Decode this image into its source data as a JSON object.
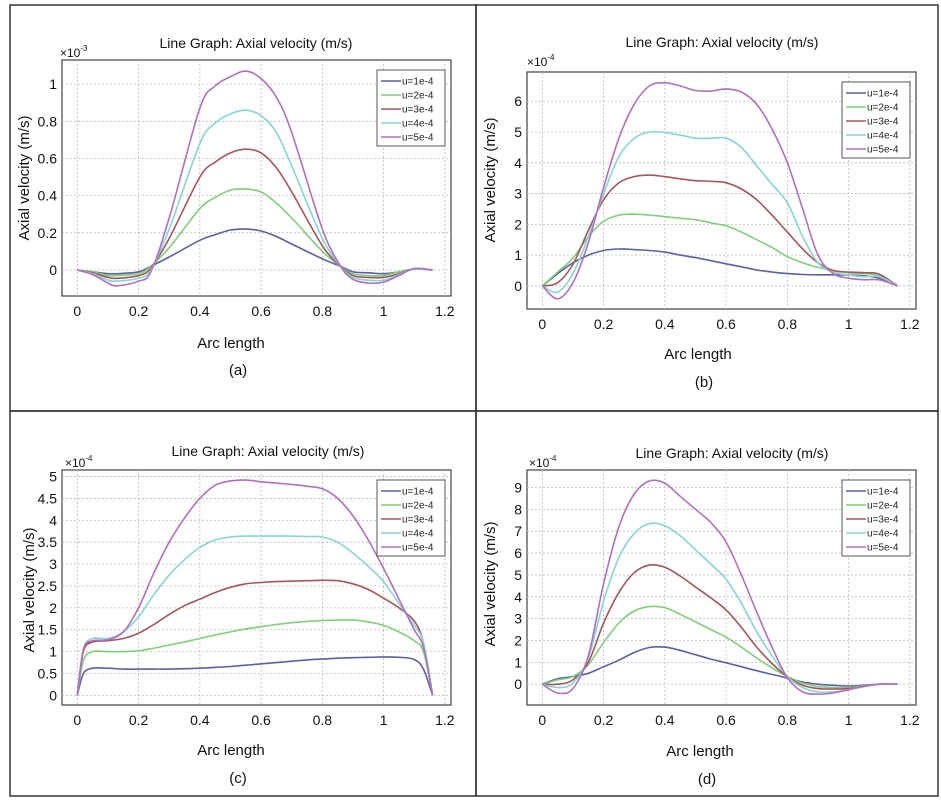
{
  "colors": {
    "u1": "#5a5fa8",
    "u2": "#7fcf7a",
    "u3": "#a5555a",
    "u4": "#86d4d6",
    "u5": "#b06fbf"
  },
  "chart_data": [
    {
      "type": "line",
      "panel": "(a)",
      "title": "Line Graph: Axial velocity (m/s)",
      "xlabel": "Arc length",
      "ylabel": "Axial velocity (m/s)",
      "y_multiplier": "×10^-3",
      "y_multiplier_base": "×10",
      "y_multiplier_exp": "-3",
      "xlim": [
        -0.05,
        1.22
      ],
      "ylim": [
        -0.14,
        1.13
      ],
      "xticks": [
        0,
        0.2,
        0.4,
        0.6,
        0.8,
        1,
        1.2
      ],
      "xtick_labels": [
        "0",
        "0.2",
        "0.4",
        "0.6",
        "0.8",
        "1",
        "1.2"
      ],
      "yticks": [
        0,
        0.2,
        0.4,
        0.6,
        0.8,
        1
      ],
      "ytick_labels": [
        "0",
        "0.2",
        "0.4",
        "0.6",
        "0.8",
        "1"
      ],
      "grid": true,
      "legend_position": "top-right",
      "x": [
        0,
        0.05,
        0.1,
        0.13,
        0.2,
        0.24,
        0.3,
        0.4,
        0.45,
        0.5,
        0.55,
        0.6,
        0.65,
        0.7,
        0.8,
        0.86,
        0.9,
        0.95,
        1.0,
        1.05,
        1.1,
        1.16
      ],
      "series": [
        {
          "name": "u=1e-4",
          "color_key": "u1",
          "values": [
            0,
            -0.01,
            -0.02,
            -0.02,
            -0.01,
            0.02,
            0.07,
            0.16,
            0.19,
            0.215,
            0.22,
            0.21,
            0.18,
            0.14,
            0.06,
            0.02,
            -0.01,
            -0.015,
            -0.02,
            -0.01,
            0.005,
            0
          ]
        },
        {
          "name": "u=2e-4",
          "color_key": "u2",
          "values": [
            0,
            -0.01,
            -0.03,
            -0.03,
            -0.02,
            0.02,
            0.12,
            0.33,
            0.39,
            0.43,
            0.435,
            0.42,
            0.36,
            0.28,
            0.1,
            0.02,
            -0.02,
            -0.03,
            -0.03,
            -0.01,
            0.005,
            0
          ]
        },
        {
          "name": "u=3e-4",
          "color_key": "u3",
          "values": [
            0,
            -0.015,
            -0.04,
            -0.045,
            -0.03,
            0.01,
            0.17,
            0.5,
            0.58,
            0.63,
            0.65,
            0.63,
            0.55,
            0.42,
            0.13,
            0.02,
            -0.03,
            -0.04,
            -0.04,
            -0.02,
            0.005,
            0
          ]
        },
        {
          "name": "u=4e-4",
          "color_key": "u4",
          "values": [
            0,
            -0.02,
            -0.055,
            -0.06,
            -0.045,
            0.0,
            0.22,
            0.68,
            0.79,
            0.84,
            0.86,
            0.83,
            0.74,
            0.56,
            0.17,
            0.02,
            -0.04,
            -0.055,
            -0.055,
            -0.025,
            0.005,
            0
          ]
        },
        {
          "name": "u=5e-4",
          "color_key": "u5",
          "values": [
            0,
            -0.025,
            -0.07,
            -0.085,
            -0.06,
            -0.01,
            0.28,
            0.87,
            0.99,
            1.04,
            1.07,
            1.03,
            0.93,
            0.74,
            0.22,
            0.02,
            -0.05,
            -0.07,
            -0.065,
            -0.03,
            0.008,
            0
          ]
        }
      ]
    },
    {
      "type": "line",
      "panel": "(b)",
      "title": "Line Graph: Axial velocity (m/s)",
      "xlabel": "Arc length",
      "ylabel": "Axial velocity (m/s)",
      "y_multiplier": "×10^-4",
      "y_multiplier_base": "×10",
      "y_multiplier_exp": "-4",
      "xlim": [
        -0.05,
        1.22
      ],
      "ylim": [
        -0.75,
        6.95
      ],
      "xticks": [
        0,
        0.2,
        0.4,
        0.6,
        0.8,
        1,
        1.2
      ],
      "xtick_labels": [
        "0",
        "0.2",
        "0.4",
        "0.6",
        "0.8",
        "1",
        "1.2"
      ],
      "yticks": [
        0,
        1,
        2,
        3,
        4,
        5,
        6
      ],
      "ytick_labels": [
        "0",
        "1",
        "2",
        "3",
        "4",
        "5",
        "6"
      ],
      "grid": true,
      "legend_position": "top-right",
      "x": [
        0,
        0.05,
        0.1,
        0.15,
        0.2,
        0.25,
        0.3,
        0.35,
        0.4,
        0.45,
        0.5,
        0.55,
        0.6,
        0.65,
        0.7,
        0.75,
        0.8,
        0.85,
        0.9,
        0.95,
        1.0,
        1.05,
        1.1,
        1.16
      ],
      "series": [
        {
          "name": "u=1e-4",
          "color_key": "u1",
          "values": [
            0,
            0.4,
            0.75,
            1.0,
            1.15,
            1.2,
            1.18,
            1.15,
            1.1,
            1.0,
            0.92,
            0.82,
            0.72,
            0.62,
            0.52,
            0.45,
            0.4,
            0.37,
            0.36,
            0.36,
            0.35,
            0.33,
            0.25,
            0
          ]
        },
        {
          "name": "u=2e-4",
          "color_key": "u2",
          "values": [
            0,
            0.45,
            0.9,
            1.6,
            2.1,
            2.3,
            2.33,
            2.3,
            2.25,
            2.2,
            2.15,
            2.05,
            1.95,
            1.75,
            1.5,
            1.25,
            0.95,
            0.75,
            0.6,
            0.5,
            0.43,
            0.4,
            0.33,
            0
          ]
        },
        {
          "name": "u=3e-4",
          "color_key": "u3",
          "values": [
            0,
            0.1,
            0.7,
            1.8,
            2.8,
            3.35,
            3.55,
            3.6,
            3.55,
            3.48,
            3.42,
            3.4,
            3.35,
            3.15,
            2.8,
            2.3,
            1.75,
            1.2,
            0.75,
            0.5,
            0.45,
            0.43,
            0.38,
            0
          ]
        },
        {
          "name": "u=4e-4",
          "color_key": "u4",
          "values": [
            0,
            -0.2,
            0.4,
            1.6,
            3.0,
            4.2,
            4.8,
            5.0,
            4.98,
            4.9,
            4.8,
            4.8,
            4.8,
            4.5,
            3.9,
            3.3,
            2.7,
            1.6,
            0.75,
            0.45,
            0.35,
            0.3,
            0.3,
            0
          ]
        },
        {
          "name": "u=5e-4",
          "color_key": "u5",
          "values": [
            0,
            -0.42,
            0.1,
            1.4,
            3.2,
            4.8,
            5.9,
            6.5,
            6.6,
            6.5,
            6.35,
            6.33,
            6.4,
            6.3,
            5.9,
            5.1,
            4.0,
            2.5,
            1.0,
            0.4,
            0.25,
            0.2,
            0.2,
            0
          ]
        }
      ]
    },
    {
      "type": "line",
      "panel": "(c)",
      "title": "Line Graph: Axial velocity (m/s)",
      "xlabel": "Arc length",
      "ylabel": "Axial velocity (m/s)",
      "y_multiplier": "×10^-4",
      "y_multiplier_base": "×10",
      "y_multiplier_exp": "-4",
      "xlim": [
        -0.05,
        1.22
      ],
      "ylim": [
        -0.22,
        5.15
      ],
      "xticks": [
        0,
        0.2,
        0.4,
        0.6,
        0.8,
        1,
        1.2
      ],
      "xtick_labels": [
        "0",
        "0.2",
        "0.4",
        "0.6",
        "0.8",
        "1",
        "1.2"
      ],
      "yticks": [
        0,
        0.5,
        1,
        1.5,
        2,
        2.5,
        3,
        3.5,
        4,
        4.5,
        5
      ],
      "ytick_labels": [
        "0",
        "0.5",
        "1",
        "1.5",
        "2",
        "2.5",
        "3",
        "3.5",
        "4",
        "4.5",
        "5"
      ],
      "grid": true,
      "legend_position": "top-right",
      "x": [
        0,
        0.02,
        0.05,
        0.1,
        0.15,
        0.2,
        0.25,
        0.3,
        0.35,
        0.4,
        0.45,
        0.5,
        0.55,
        0.6,
        0.65,
        0.7,
        0.75,
        0.8,
        0.85,
        0.9,
        0.95,
        1.0,
        1.05,
        1.1,
        1.13,
        1.16
      ],
      "series": [
        {
          "name": "u=1e-4",
          "color_key": "u1",
          "values": [
            0,
            0.5,
            0.62,
            0.62,
            0.6,
            0.6,
            0.6,
            0.6,
            0.61,
            0.62,
            0.64,
            0.66,
            0.69,
            0.72,
            0.75,
            0.78,
            0.81,
            0.83,
            0.85,
            0.86,
            0.87,
            0.88,
            0.87,
            0.82,
            0.6,
            0
          ]
        },
        {
          "name": "u=2e-4",
          "color_key": "u2",
          "values": [
            0,
            0.8,
            1.0,
            1.0,
            1.0,
            1.02,
            1.08,
            1.15,
            1.22,
            1.3,
            1.38,
            1.45,
            1.52,
            1.57,
            1.62,
            1.66,
            1.69,
            1.71,
            1.72,
            1.72,
            1.68,
            1.6,
            1.45,
            1.25,
            1.0,
            0
          ]
        },
        {
          "name": "u=3e-4",
          "color_key": "u3",
          "values": [
            0,
            1.0,
            1.22,
            1.25,
            1.3,
            1.42,
            1.62,
            1.85,
            2.05,
            2.2,
            2.35,
            2.47,
            2.55,
            2.58,
            2.6,
            2.61,
            2.62,
            2.63,
            2.62,
            2.55,
            2.42,
            2.22,
            2.0,
            1.7,
            1.2,
            0
          ]
        },
        {
          "name": "u=4e-4",
          "color_key": "u4",
          "values": [
            0,
            1.05,
            1.3,
            1.3,
            1.45,
            1.8,
            2.3,
            2.75,
            3.1,
            3.38,
            3.55,
            3.62,
            3.64,
            3.64,
            3.64,
            3.64,
            3.63,
            3.62,
            3.5,
            3.25,
            2.95,
            2.6,
            2.1,
            1.6,
            1.2,
            0
          ]
        },
        {
          "name": "u=5e-4",
          "color_key": "u5",
          "values": [
            0,
            1.05,
            1.25,
            1.27,
            1.45,
            2.0,
            2.8,
            3.5,
            4.05,
            4.5,
            4.8,
            4.9,
            4.92,
            4.88,
            4.85,
            4.82,
            4.78,
            4.72,
            4.5,
            4.1,
            3.55,
            2.9,
            2.2,
            1.5,
            1.1,
            0
          ]
        }
      ]
    },
    {
      "type": "line",
      "panel": "(d)",
      "title": "Line Graph: Axial velocity (m/s)",
      "xlabel": "Arc length",
      "ylabel": "Axial velocity (m/s)",
      "y_multiplier": "×10^-4",
      "y_multiplier_base": "×10",
      "y_multiplier_exp": "-4",
      "xlim": [
        -0.05,
        1.22
      ],
      "ylim": [
        -0.95,
        9.8
      ],
      "xticks": [
        0,
        0.2,
        0.4,
        0.6,
        0.8,
        1,
        1.2
      ],
      "xtick_labels": [
        "0",
        "0.2",
        "0.4",
        "0.6",
        "0.8",
        "1",
        "1.2"
      ],
      "yticks": [
        0,
        1,
        2,
        3,
        4,
        5,
        6,
        7,
        8,
        9
      ],
      "ytick_labels": [
        "0",
        "1",
        "2",
        "3",
        "4",
        "5",
        "6",
        "7",
        "8",
        "9"
      ],
      "grid": true,
      "legend_position": "top-right",
      "x": [
        0,
        0.05,
        0.1,
        0.15,
        0.2,
        0.25,
        0.3,
        0.35,
        0.4,
        0.45,
        0.5,
        0.55,
        0.6,
        0.65,
        0.7,
        0.75,
        0.8,
        0.85,
        0.9,
        0.95,
        1.0,
        1.05,
        1.1,
        1.16
      ],
      "series": [
        {
          "name": "u=1e-4",
          "color_key": "u1",
          "values": [
            0,
            0.25,
            0.35,
            0.5,
            0.8,
            1.1,
            1.45,
            1.68,
            1.7,
            1.55,
            1.35,
            1.15,
            0.98,
            0.8,
            0.62,
            0.45,
            0.28,
            0.1,
            0.0,
            -0.05,
            -0.08,
            -0.05,
            0.0,
            0
          ]
        },
        {
          "name": "u=2e-4",
          "color_key": "u2",
          "values": [
            0,
            0.2,
            0.35,
            0.9,
            1.9,
            2.8,
            3.35,
            3.55,
            3.5,
            3.2,
            2.85,
            2.5,
            2.15,
            1.7,
            1.2,
            0.75,
            0.35,
            0.05,
            -0.1,
            -0.15,
            -0.15,
            -0.08,
            0.0,
            0
          ]
        },
        {
          "name": "u=3e-4",
          "color_key": "u3",
          "values": [
            0,
            0.0,
            0.2,
            1.0,
            2.8,
            4.2,
            5.1,
            5.45,
            5.35,
            4.95,
            4.45,
            3.95,
            3.4,
            2.6,
            1.7,
            0.95,
            0.35,
            -0.05,
            -0.2,
            -0.22,
            -0.2,
            -0.1,
            0.0,
            0
          ]
        },
        {
          "name": "u=4e-4",
          "color_key": "u4",
          "values": [
            0,
            -0.15,
            0.05,
            1.2,
            3.8,
            5.8,
            6.9,
            7.35,
            7.25,
            6.8,
            6.15,
            5.5,
            4.8,
            3.7,
            2.4,
            1.3,
            0.35,
            -0.15,
            -0.35,
            -0.35,
            -0.25,
            -0.1,
            0.0,
            0
          ]
        },
        {
          "name": "u=5e-4",
          "color_key": "u5",
          "values": [
            0,
            -0.4,
            -0.2,
            1.3,
            4.6,
            7.2,
            8.7,
            9.3,
            9.2,
            8.6,
            8.0,
            7.4,
            6.5,
            5.0,
            3.3,
            1.7,
            0.3,
            -0.35,
            -0.45,
            -0.4,
            -0.25,
            -0.1,
            0.0,
            0
          ]
        }
      ]
    }
  ]
}
